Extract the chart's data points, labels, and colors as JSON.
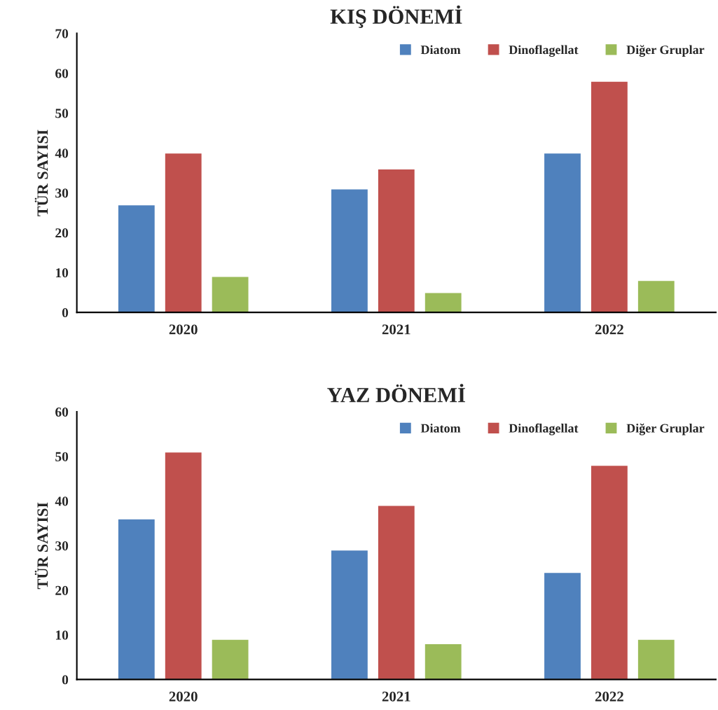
{
  "chart_data": [
    {
      "type": "bar",
      "title": "KIŞ DÖNEMİ",
      "ylabel": "TÜR SAYISI",
      "categories": [
        "2020",
        "2021",
        "2022"
      ],
      "ylim": [
        0,
        70
      ],
      "yticks": [
        0,
        10,
        20,
        30,
        40,
        50,
        60,
        70
      ],
      "legend": "top right",
      "grid": false,
      "series": [
        {
          "name": "Diatom",
          "color": "#4f81bd",
          "values": [
            27,
            31,
            40
          ]
        },
        {
          "name": "Dinoflagellat",
          "color": "#c0504d",
          "values": [
            40,
            36,
            58
          ]
        },
        {
          "name": "Diğer Gruplar",
          "color": "#9bbb59",
          "values": [
            9,
            5,
            8
          ]
        }
      ]
    },
    {
      "type": "bar",
      "title": "YAZ DÖNEMİ",
      "ylabel": "TÜR SAYISI",
      "categories": [
        "2020",
        "2021",
        "2022"
      ],
      "ylim": [
        0,
        60
      ],
      "yticks": [
        0,
        10,
        20,
        30,
        40,
        50,
        60
      ],
      "legend": "top right",
      "grid": false,
      "series": [
        {
          "name": "Diatom",
          "color": "#4f81bd",
          "values": [
            36,
            29,
            24
          ]
        },
        {
          "name": "Dinoflagellat",
          "color": "#c0504d",
          "values": [
            51,
            39,
            48
          ]
        },
        {
          "name": "Diğer Gruplar",
          "color": "#9bbb59",
          "values": [
            9,
            8,
            9
          ]
        }
      ]
    }
  ]
}
